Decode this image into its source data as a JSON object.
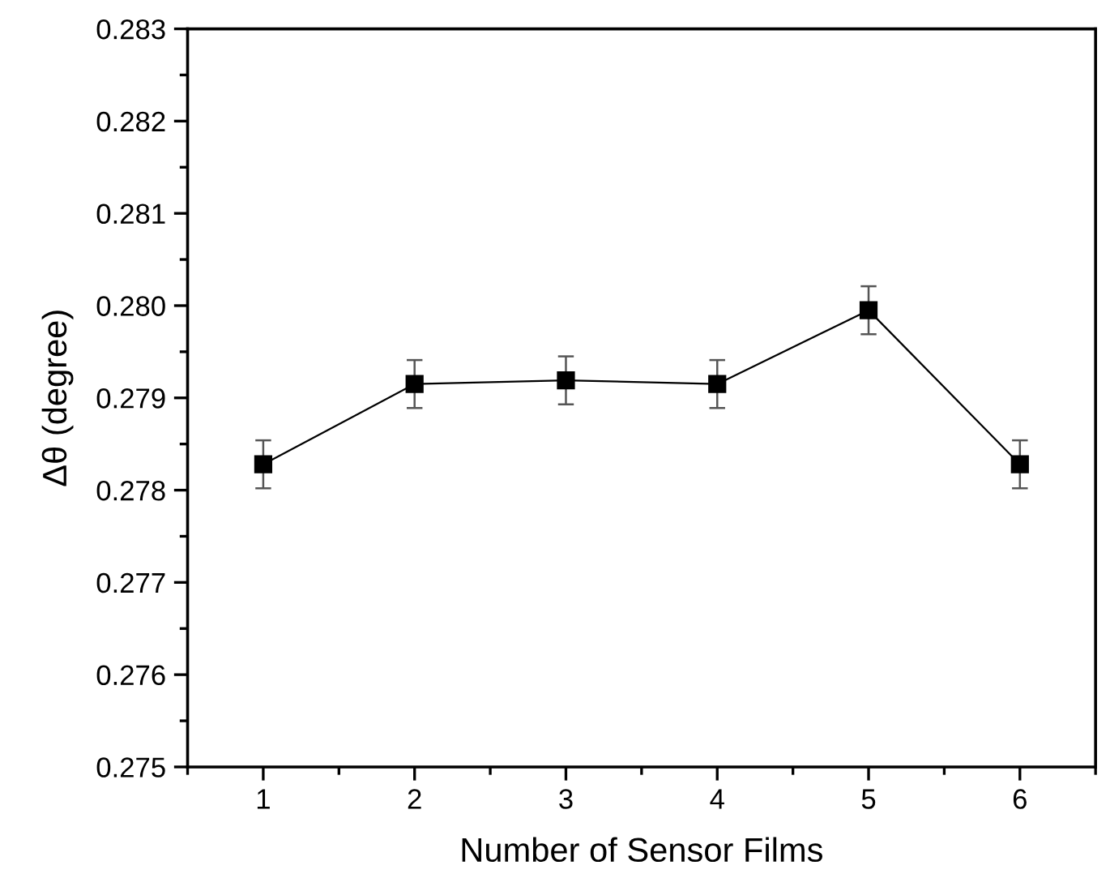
{
  "chart_data": {
    "type": "line",
    "xlabel": "Number of Sensor Films",
    "ylabel": "Δθ (degree)",
    "x": [
      1,
      2,
      3,
      4,
      5,
      6
    ],
    "series": [
      {
        "color": "#000000",
        "values": [
          0.27828,
          0.27915,
          0.27919,
          0.27915,
          0.27995,
          0.27828
        ],
        "errors": [
          0.00026,
          0.00026,
          0.00026,
          0.00026,
          0.00026,
          0.00026
        ]
      }
    ],
    "xlim": [
      0.5,
      6.5
    ],
    "xticks": [
      1,
      2,
      3,
      4,
      5,
      6
    ],
    "ylim": [
      0.275,
      0.283
    ],
    "yticks": [
      {
        "value": 0.275,
        "label": "0.275"
      },
      {
        "value": 0.276,
        "label": "0.276"
      },
      {
        "value": 0.277,
        "label": "0.277"
      },
      {
        "value": 0.278,
        "label": "0.278"
      },
      {
        "value": 0.279,
        "label": "0.279"
      },
      {
        "value": 0.28,
        "label": "0.280"
      },
      {
        "value": 0.281,
        "label": "0.281"
      },
      {
        "value": 0.282,
        "label": "0.282"
      },
      {
        "value": 0.283,
        "label": "0.283"
      }
    ],
    "marker": "square",
    "line_style": "solid"
  }
}
